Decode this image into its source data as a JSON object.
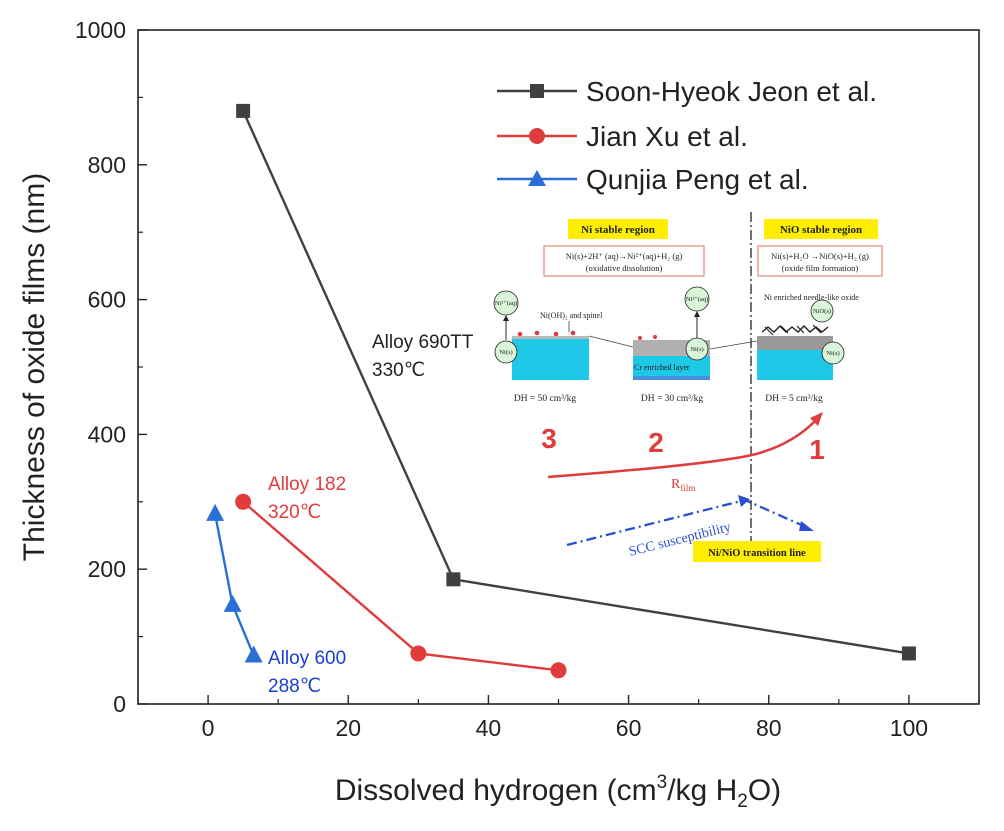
{
  "chart_data": {
    "type": "line",
    "xlabel_main": "Dissolved hydrogen (cm",
    "xlabel_sup": "3",
    "xlabel_mid": "/kg H",
    "xlabel_sub": "2",
    "xlabel_end": "O)",
    "ylabel": "Thickness of oxide films (nm)",
    "xlim": [
      -10,
      110
    ],
    "ylim": [
      0,
      1000
    ],
    "xticks": [
      0,
      20,
      40,
      60,
      80,
      100
    ],
    "yticks": [
      0,
      200,
      400,
      600,
      800,
      1000
    ],
    "legend_position": "top-right",
    "series": [
      {
        "name": "Soon-Hyeok Jeon et al.",
        "marker": "square",
        "color": "#404040",
        "x": [
          5,
          35,
          100
        ],
        "y": [
          880,
          185,
          75
        ]
      },
      {
        "name": "Jian Xu et al.",
        "marker": "circle",
        "color": "#e03c3c",
        "x": [
          5,
          30,
          50
        ],
        "y": [
          300,
          75,
          50
        ]
      },
      {
        "name": "Qunjia Peng et al.",
        "marker": "triangle",
        "color": "#2a6fd6",
        "x": [
          1,
          3.5,
          6.5
        ],
        "y": [
          282,
          147,
          72
        ]
      }
    ],
    "annotations": {
      "alloy690_name": "Alloy 690TT",
      "alloy690_temp": "330℃",
      "alloy182_name": "Alloy 182",
      "alloy182_temp": "320℃",
      "alloy600_name": "Alloy 600",
      "alloy600_temp": "288℃"
    },
    "inset": {
      "ni_region": "Ni stable region",
      "nio_region": "NiO stable region",
      "ni_eq_line1": "Ni(s)+2H⁺ (aq)→Ni²⁺(aq)+H₂ (g)",
      "ni_eq_line2": "(oxidative dissolution)",
      "nio_eq_line1": "Ni(s)+H₂O →NiO(s)+H₂ (g)",
      "nio_eq_line2": "(oxide film formation)",
      "label_nioh2": "Ni(OH)₂ and spinel",
      "label_cr": "Cr enriched layer",
      "label_needle": "Ni enriched needle-like oxide",
      "ni2aq": "Ni²⁺(aq)",
      "nis": "Ni(s)",
      "nios": "NiO(s)",
      "dh1": "DH = 50 cm³/kg",
      "dh2": "DH = 30 cm³/kg",
      "dh3": "DH = 5 cm³/kg",
      "num3": "3",
      "num2": "2",
      "num1": "1",
      "rfilm": "R",
      "rfilm_sub": "film",
      "scc": "SCC susceptibility",
      "transition": "Ni/NiO transition line"
    }
  }
}
